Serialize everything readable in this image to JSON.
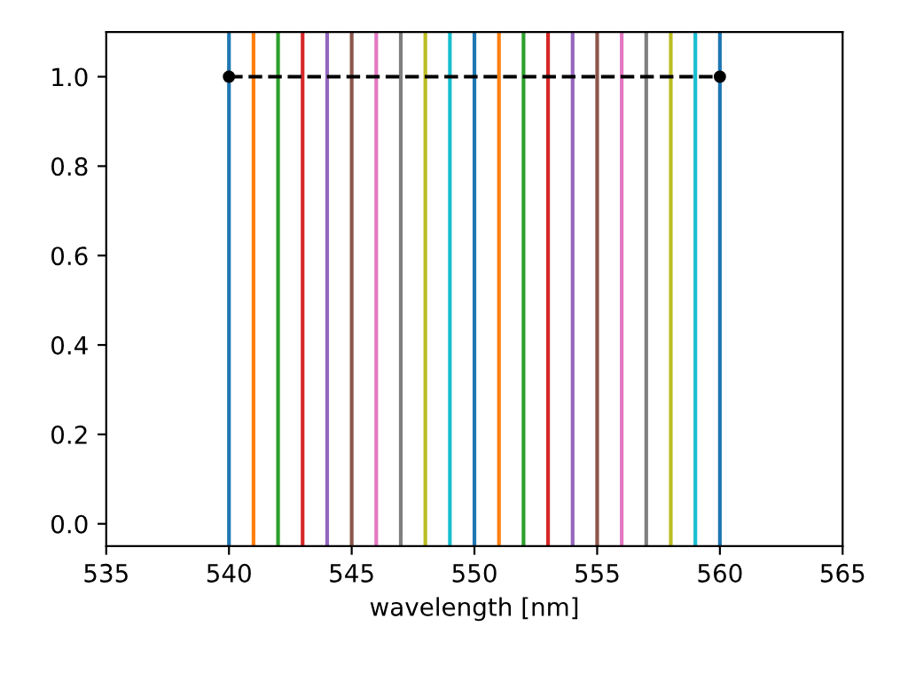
{
  "chart_data": {
    "type": "line",
    "xlabel": "wavelength [nm]",
    "xlim": [
      535,
      565
    ],
    "xticks": [
      535,
      540,
      545,
      550,
      555,
      560,
      565
    ],
    "ylim": [
      -0.05,
      1.1
    ],
    "yticks": [
      {
        "value": 0,
        "label": "0.0"
      },
      {
        "value": 0.2,
        "label": "0.2"
      },
      {
        "value": 0.4,
        "label": "0.4"
      },
      {
        "value": 0.6,
        "label": "0.6"
      },
      {
        "value": 0.8,
        "label": "0.8"
      },
      {
        "value": 1,
        "label": "1.0"
      }
    ],
    "series": [
      {
        "color": "#000000",
        "x": [
          540,
          560
        ],
        "values": [
          1,
          1
        ],
        "line_style": "dashed",
        "marker": "circle"
      }
    ],
    "ref_lines": [
      {
        "axis": "x",
        "value": 540,
        "color": "#1f77b4"
      },
      {
        "axis": "x",
        "value": 541,
        "color": "#ff7f0e"
      },
      {
        "axis": "x",
        "value": 542,
        "color": "#2ca02c"
      },
      {
        "axis": "x",
        "value": 543,
        "color": "#d62728"
      },
      {
        "axis": "x",
        "value": 544,
        "color": "#9467bd"
      },
      {
        "axis": "x",
        "value": 545,
        "color": "#8c564b"
      },
      {
        "axis": "x",
        "value": 546,
        "color": "#e377c2"
      },
      {
        "axis": "x",
        "value": 547,
        "color": "#7f7f7f"
      },
      {
        "axis": "x",
        "value": 548,
        "color": "#bcbd22"
      },
      {
        "axis": "x",
        "value": 549,
        "color": "#17becf"
      },
      {
        "axis": "x",
        "value": 550,
        "color": "#1f77b4"
      },
      {
        "axis": "x",
        "value": 551,
        "color": "#ff7f0e"
      },
      {
        "axis": "x",
        "value": 552,
        "color": "#2ca02c"
      },
      {
        "axis": "x",
        "value": 553,
        "color": "#d62728"
      },
      {
        "axis": "x",
        "value": 554,
        "color": "#9467bd"
      },
      {
        "axis": "x",
        "value": 555,
        "color": "#8c564b"
      },
      {
        "axis": "x",
        "value": 556,
        "color": "#e377c2"
      },
      {
        "axis": "x",
        "value": 557,
        "color": "#7f7f7f"
      },
      {
        "axis": "x",
        "value": 558,
        "color": "#bcbd22"
      },
      {
        "axis": "x",
        "value": 559,
        "color": "#17becf"
      },
      {
        "axis": "x",
        "value": 560,
        "color": "#1f77b4"
      }
    ]
  }
}
